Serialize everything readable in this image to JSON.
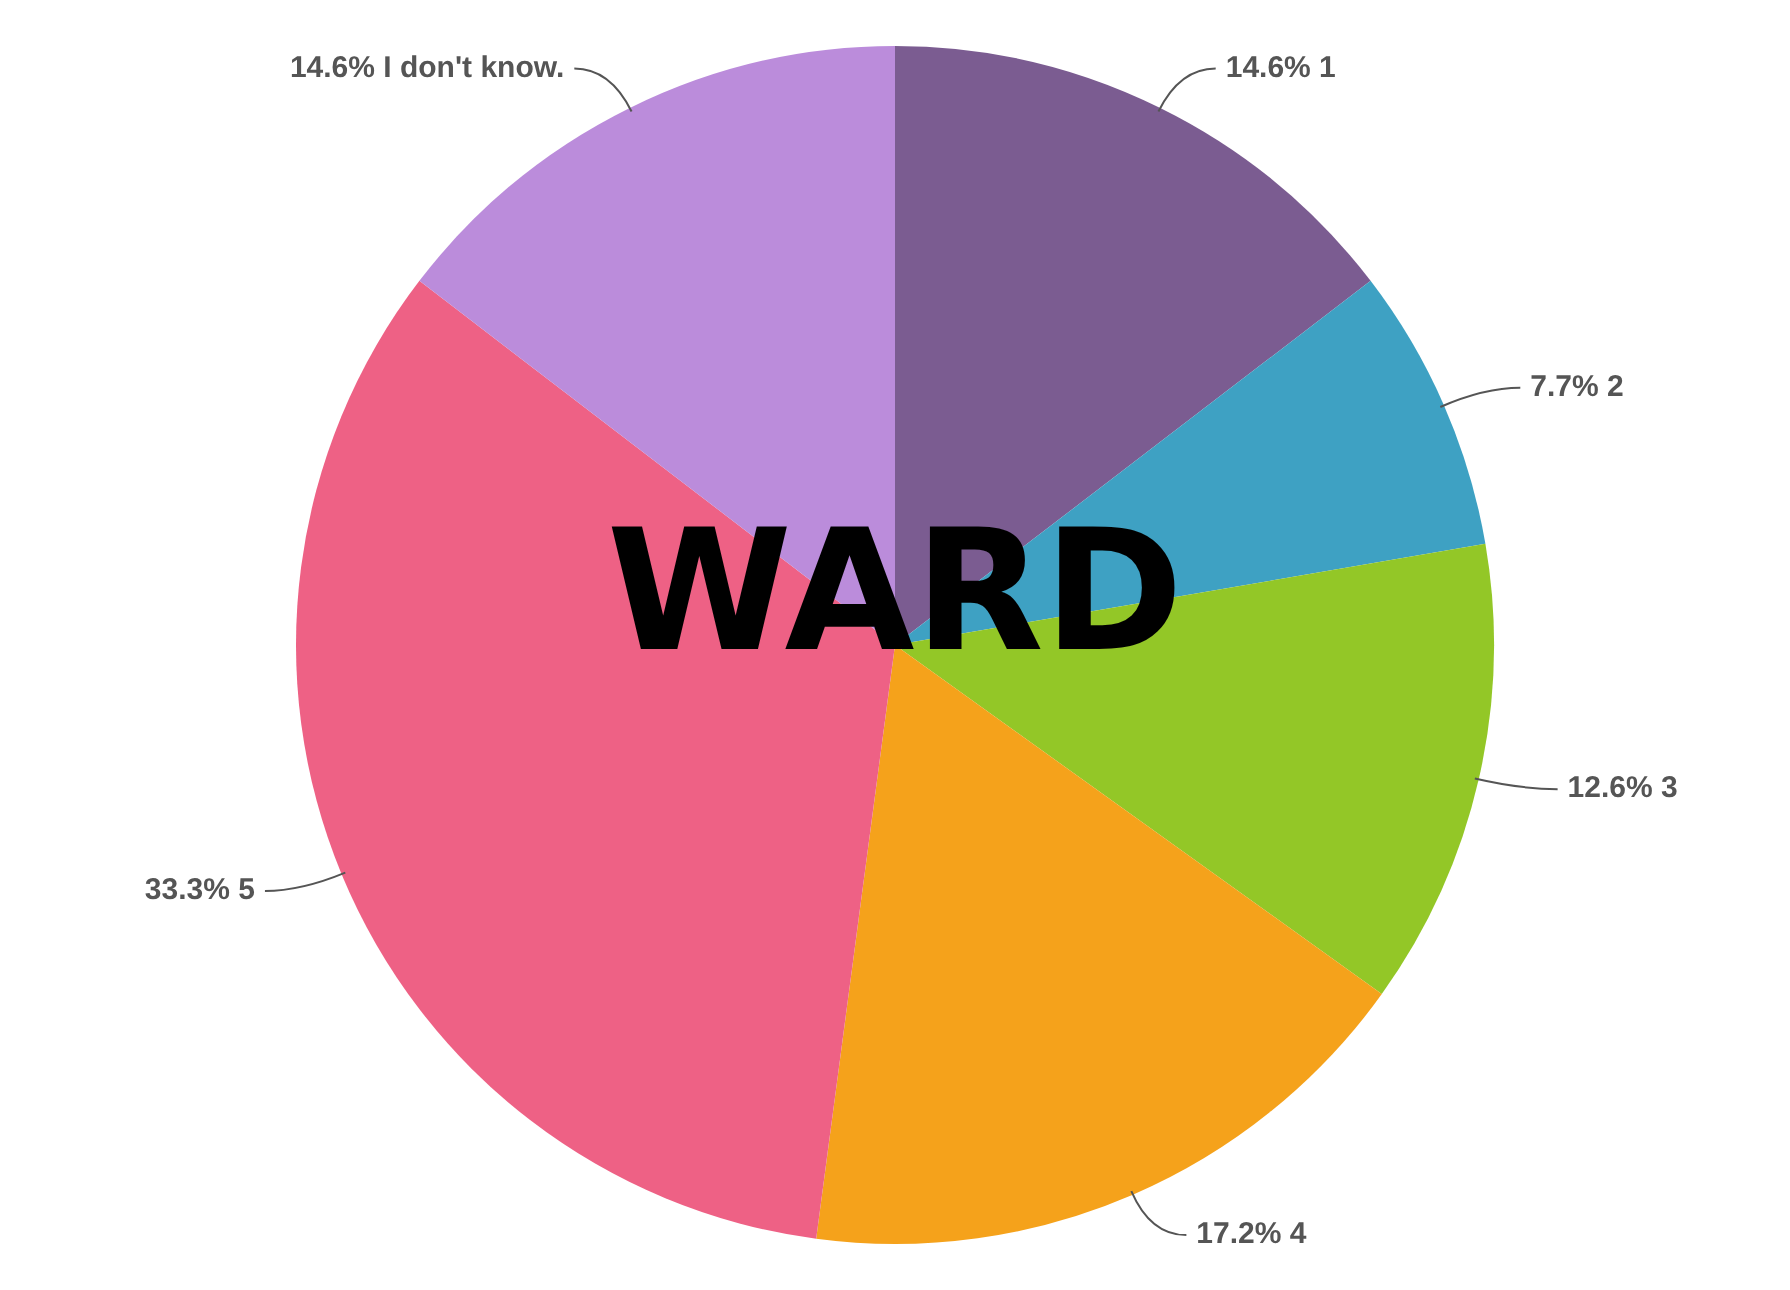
{
  "chart_data": {
    "type": "pie",
    "title": "WARD",
    "categories": [
      "1",
      "2",
      "3",
      "4",
      "5",
      "I don't know."
    ],
    "values": [
      14.6,
      7.7,
      12.6,
      17.2,
      33.3,
      14.6
    ],
    "value_labels": [
      "14.6%",
      "7.7%",
      "12.6%",
      "17.2%",
      "33.3%",
      "14.6%"
    ],
    "colors": [
      "#7b5c91",
      "#3ea1c3",
      "#93c727",
      "#f5a21b",
      "#ee6185",
      "#bb8cdb"
    ],
    "legend": false
  }
}
